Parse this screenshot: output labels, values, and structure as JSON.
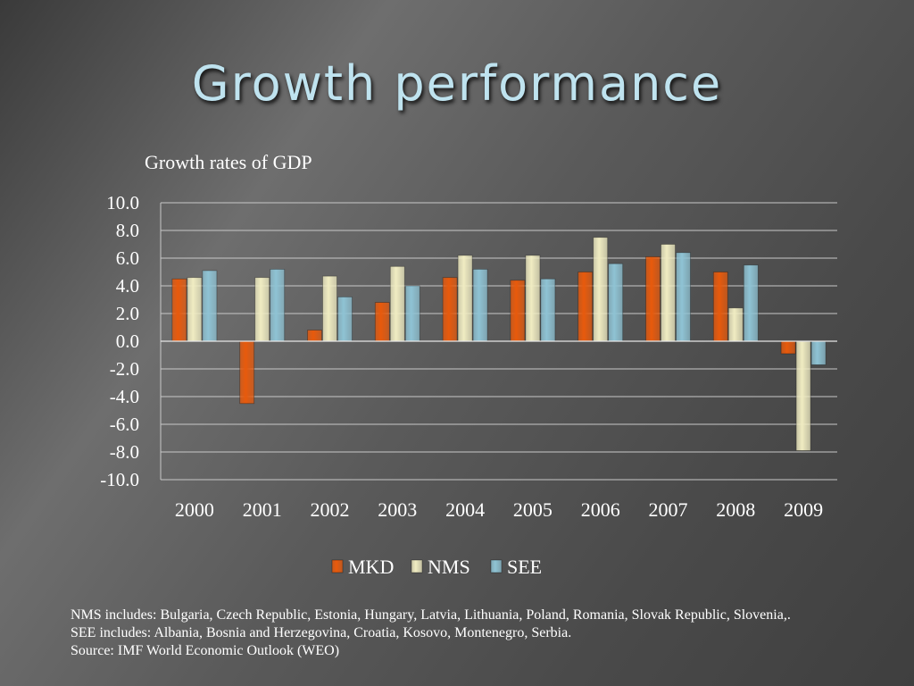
{
  "slide": {
    "title": "Growth performance"
  },
  "chart_data": {
    "type": "bar",
    "title": "Growth rates of GDP",
    "xlabel": "",
    "ylabel": "",
    "categories": [
      "2000",
      "2001",
      "2002",
      "2003",
      "2004",
      "2005",
      "2006",
      "2007",
      "2008",
      "2009"
    ],
    "series": [
      {
        "name": "MKD",
        "color": "#e85a0c",
        "values": [
          4.5,
          -4.5,
          0.8,
          2.8,
          4.6,
          4.4,
          5.0,
          6.1,
          5.0,
          -0.9
        ]
      },
      {
        "name": "NMS",
        "color": "#f0ecc2",
        "values": [
          4.6,
          4.6,
          4.7,
          5.4,
          6.2,
          6.2,
          7.5,
          7.0,
          2.4,
          -7.9
        ]
      },
      {
        "name": "SEE",
        "color": "#8fc3d4",
        "values": [
          5.1,
          5.2,
          3.2,
          4.0,
          5.2,
          4.5,
          5.6,
          6.4,
          5.5,
          -1.7
        ]
      }
    ],
    "ylim": [
      -10,
      10
    ],
    "yticks": [
      "10.0",
      "8.0",
      "6.0",
      "4.0",
      "2.0",
      "0.0",
      "-2.0",
      "-4.0",
      "-6.0",
      "-8.0",
      "-10.0"
    ],
    "grid": true,
    "legend": "bottom"
  },
  "footnotes": {
    "nms": "NMS includes: Bulgaria, Czech Republic, Estonia, Hungary, Latvia, Lithuania, Poland, Romania, Slovak Republic, Slovenia,.",
    "see": "SEE includes: Albania, Bosnia and Herzegovina, Croatia, Kosovo, Montenegro, Serbia.",
    "source": "Source: IMF World Economic Outlook (WEO)"
  }
}
